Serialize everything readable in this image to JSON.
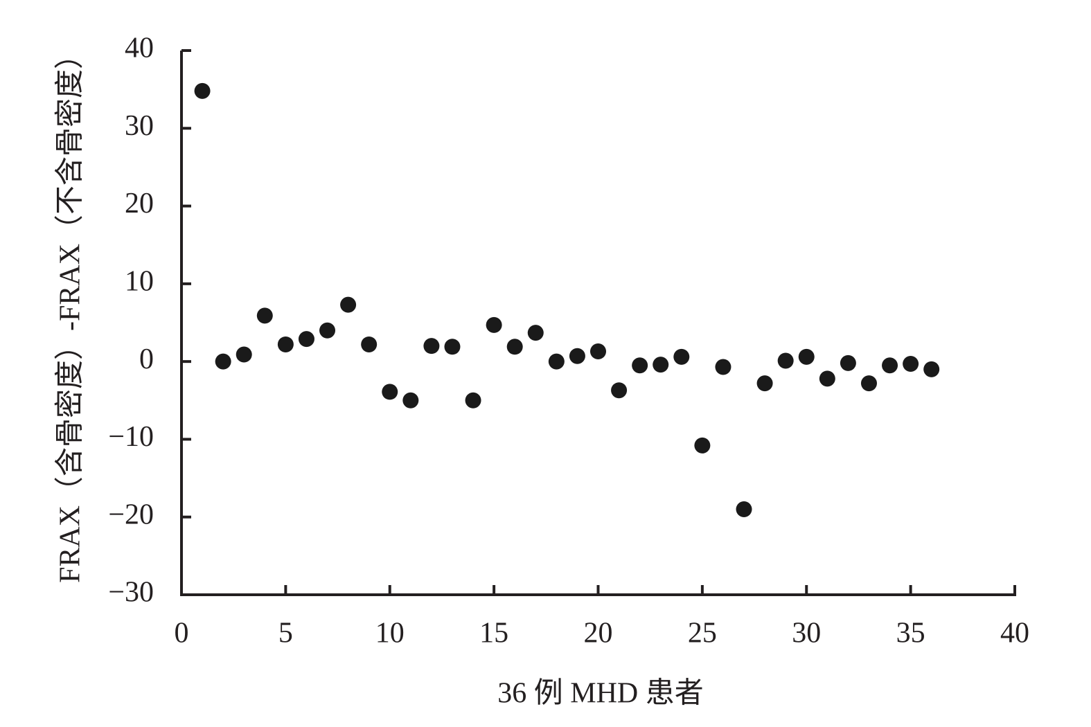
{
  "chart_data": {
    "type": "scatter",
    "x_label": "36 例 MHD 患者",
    "y_label": "FRAX（含骨密度）-FRAX（不含骨密度）",
    "color": "#1a1a1a",
    "x": [
      1,
      2,
      3,
      4,
      5,
      6,
      7,
      8,
      9,
      10,
      11,
      12,
      13,
      14,
      15,
      16,
      17,
      18,
      19,
      20,
      21,
      22,
      23,
      24,
      25,
      26,
      27,
      28,
      29,
      30,
      31,
      32,
      33,
      34,
      35,
      36
    ],
    "values": [
      34.8,
      0,
      0.9,
      5.9,
      2.2,
      2.9,
      4.0,
      7.3,
      2.2,
      -3.9,
      -5.0,
      2.0,
      1.9,
      -5.0,
      4.7,
      1.9,
      3.7,
      0,
      0.7,
      1.3,
      -3.7,
      -0.5,
      -0.4,
      0.6,
      -10.8,
      -0.7,
      -19.0,
      -2.8,
      0.1,
      0.6,
      -2.2,
      -0.2,
      -2.8,
      -0.5,
      -0.3,
      -1.0
    ],
    "xlim": [
      0,
      40
    ],
    "xticks": [
      0,
      5,
      10,
      15,
      20,
      25,
      30,
      35,
      40
    ],
    "ylim": [
      -30,
      40
    ],
    "yticks": [
      {
        "value": -30,
        "label": "−30"
      },
      {
        "value": -20,
        "label": "−20"
      },
      {
        "value": -10,
        "label": "−10"
      },
      0,
      10,
      20,
      30,
      40
    ]
  }
}
